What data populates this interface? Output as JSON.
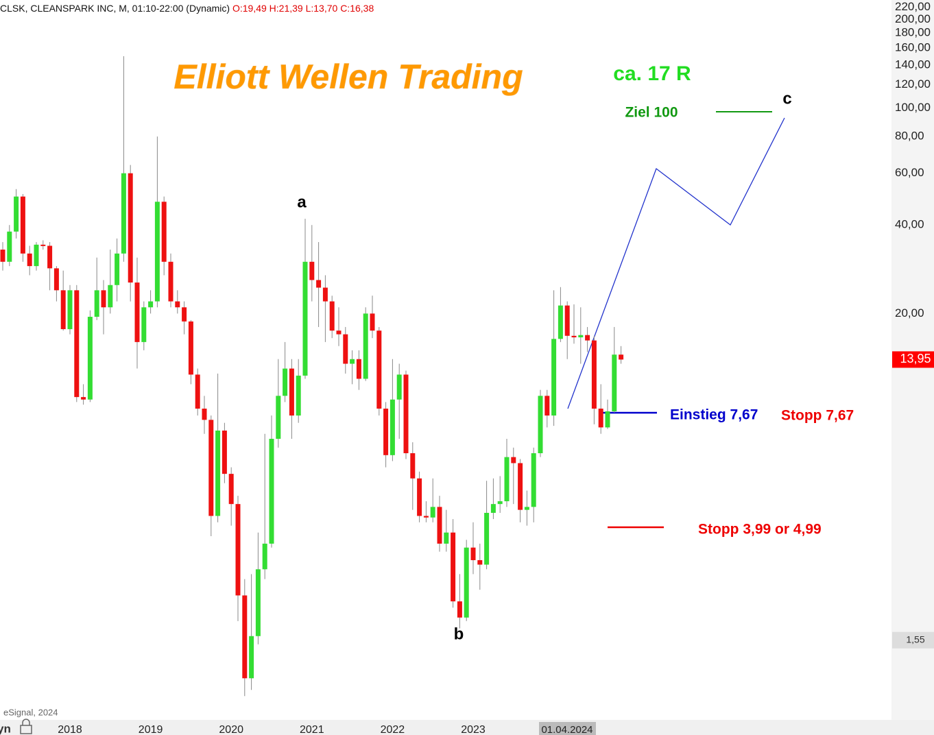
{
  "header": {
    "symbol": "CLSK, CLEANSPARK INC, M, 01:10-22:00 (Dynamic)",
    "ohlc": "O:19,49 H:21,39 L:13,70 C:16,38"
  },
  "chart_data": {
    "type": "candlestick",
    "title": "Elliott Wellen Trading",
    "log_scale": true,
    "categories": [
      null,
      null,
      null,
      null,
      null,
      null,
      null,
      null,
      null,
      null,
      "2018",
      null,
      null,
      null,
      null,
      null,
      null,
      null,
      null,
      null,
      null,
      null,
      "2019",
      null,
      null,
      null,
      null,
      null,
      null,
      null,
      null,
      null,
      null,
      null,
      "2020",
      null,
      null,
      null,
      null,
      null,
      null,
      null,
      null,
      null,
      null,
      null,
      "2021",
      null,
      null,
      null,
      null,
      null,
      null,
      null,
      null,
      null,
      null,
      null,
      "2022",
      null,
      null,
      null,
      null,
      null,
      null,
      null,
      null,
      null,
      null,
      null,
      "2023",
      null,
      null,
      null,
      null,
      null,
      null,
      null,
      null,
      null,
      null,
      null,
      null,
      null,
      null,
      null,
      null,
      null,
      null,
      null,
      null,
      null,
      null
    ],
    "open": [
      33,
      30,
      38,
      50,
      32,
      29,
      34.3,
      34,
      28.5,
      24,
      17.7,
      24,
      10.4,
      10.2,
      19.5,
      24,
      21,
      25,
      32,
      60,
      25.5,
      16,
      21,
      22,
      48,
      30,
      22,
      21,
      18.8,
      12.4,
      9.5,
      8.7,
      4.1,
      8,
      5.7,
      4.5,
      2.2,
      1.15,
      1.6,
      2.7,
      3.3,
      7.5,
      10.5,
      13,
      9,
      12.3,
      30,
      26,
      24.5,
      22,
      17.5,
      17,
      13.5,
      14,
      12,
      20,
      17.5,
      9.5,
      6.6,
      10.2,
      12.4,
      6.7,
      5.5,
      4.1,
      4.05,
      4.4,
      3.3,
      3.6,
      2.1,
      1.85,
      3.2,
      2.9,
      2.8,
      4.2,
      4.5,
      4.6,
      6.5,
      6.2,
      4.3,
      4.4,
      6.7,
      10.5,
      9,
      16.4,
      21.3,
      16.8,
      16.6,
      16.9,
      16.2,
      9.5,
      8.2,
      9.3,
      14.5
    ],
    "high": [
      35,
      40,
      53,
      51,
      34,
      35,
      35.5,
      35,
      29,
      28,
      25,
      25,
      11.5,
      20.5,
      31,
      26,
      33,
      36,
      150,
      64,
      31,
      22,
      24,
      80,
      50,
      32,
      24,
      22,
      19,
      13,
      10.5,
      9,
      12.5,
      8.5,
      6,
      4.8,
      2.5,
      2.6,
      3.6,
      7.8,
      9,
      14,
      16,
      14,
      14,
      42,
      40,
      35,
      27,
      23,
      21,
      18,
      15,
      15,
      21,
      23,
      18,
      10,
      14,
      13.5,
      12.8,
      7.3,
      5.8,
      4.6,
      5.5,
      4.8,
      4.3,
      4,
      2.6,
      3.4,
      3.9,
      3.3,
      5.4,
      5.5,
      5.6,
      7.5,
      7,
      6.4,
      5,
      7,
      11,
      11,
      24,
      24.6,
      22,
      21.5,
      21,
      18,
      16.8,
      11.5,
      10.2,
      18,
      15.5
    ],
    "low": [
      28,
      29,
      36,
      30,
      27,
      28,
      33,
      24,
      22,
      17.5,
      17,
      10,
      9.8,
      10,
      19,
      17,
      20,
      22,
      30,
      22,
      13,
      15,
      20,
      21,
      27,
      21,
      20,
      17,
      11.5,
      9,
      7.8,
      3.5,
      3.9,
      5.3,
      3.8,
      1.8,
      1.0,
      1.05,
      1.5,
      2.5,
      3.2,
      7,
      10,
      7.5,
      8.5,
      12,
      22,
      18,
      16,
      16.5,
      15.5,
      12.5,
      11.5,
      11,
      11.8,
      16.5,
      9,
      6,
      6.3,
      7.5,
      6.4,
      4.3,
      3.9,
      3.9,
      3.9,
      3.1,
      3.1,
      2.0,
      1.7,
      1.8,
      2.6,
      2.3,
      2.7,
      4,
      4.2,
      4.4,
      4.5,
      3.9,
      3.8,
      3.9,
      6.5,
      8.2,
      8.3,
      16,
      14,
      15.8,
      13.5,
      14.8,
      8.4,
      7.8,
      8.1,
      9.2,
      13.5
    ],
    "close": [
      30,
      38,
      50,
      32,
      29,
      34.3,
      34,
      28.5,
      24,
      17.7,
      24,
      10.4,
      10.2,
      19.5,
      24,
      21,
      25,
      32,
      60,
      25.5,
      16,
      21,
      22,
      48,
      30,
      22,
      21,
      18.8,
      12.4,
      9.5,
      8.7,
      4.1,
      8,
      5.7,
      4.5,
      2.2,
      1.15,
      1.6,
      2.7,
      3.3,
      7.5,
      10.5,
      13,
      9,
      12.3,
      30,
      26,
      24.5,
      22,
      17.5,
      17,
      13.5,
      14,
      12,
      20,
      17.5,
      9.5,
      6.6,
      10.2,
      12.4,
      6.7,
      5.5,
      4.1,
      4.05,
      4.4,
      3.3,
      3.6,
      2.1,
      1.85,
      3.2,
      2.9,
      2.8,
      4.2,
      4.5,
      4.6,
      6.5,
      6.2,
      4.3,
      4.4,
      6.7,
      10.5,
      9,
      16.4,
      21.3,
      16.8,
      16.6,
      16.9,
      16.2,
      9.5,
      8.2,
      9.3,
      14.5,
      13.95
    ],
    "up_color": "#33dd33",
    "down_color": "#ee1111",
    "wick_color": "#888888",
    "ylim": [
      0.83,
      233
    ],
    "yticks": [
      {
        "value": 220,
        "label": "220,00"
      },
      {
        "value": 200,
        "label": "200,00"
      },
      {
        "value": 180,
        "label": "180,00"
      },
      {
        "value": 160,
        "label": "160,00"
      },
      {
        "value": 140,
        "label": "140,00"
      },
      {
        "value": 120,
        "label": "120,00"
      },
      {
        "value": 100,
        "label": "100,00"
      },
      {
        "value": 80,
        "label": "80,00"
      },
      {
        "value": 60,
        "label": "60,00"
      },
      {
        "value": 40,
        "label": "40,00"
      },
      {
        "value": 20,
        "label": "20,00"
      }
    ],
    "price_markers": [
      {
        "value": 13.95,
        "label": "13,95",
        "color": "#ff0000",
        "text_color": "#ffffff"
      },
      {
        "value": 1.55,
        "label": "1,55",
        "color": "#dddddd",
        "text_color": "#333333"
      }
    ],
    "annotations": {
      "target_r": "ca. 17 R",
      "target": "Ziel 100",
      "wave_c": "c",
      "wave_a": "a",
      "wave_b": "b",
      "entry": "Einstieg 7,67",
      "stop1": "Stopp 7,67",
      "stop2": "Stopp 3,99 or 4,99"
    }
  },
  "footer": {
    "copyright": "eSignal, 2024",
    "left_label": "yn",
    "cursor_date": "01.04.2024"
  }
}
